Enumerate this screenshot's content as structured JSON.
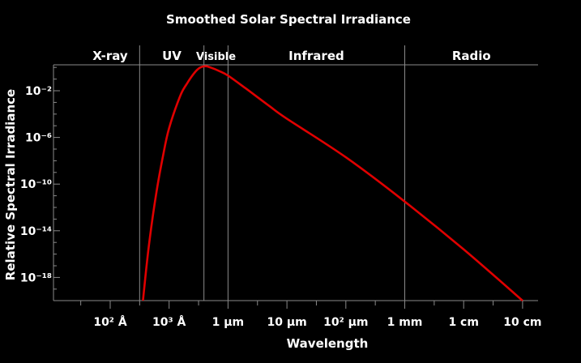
{
  "chart_data": {
    "type": "line",
    "title": "Smoothed Solar Spectral Irradiance",
    "xlabel": "Wavelength",
    "ylabel": "Relative Spectral Irradiance",
    "x_scale": "log",
    "y_scale": "log",
    "x_ticks": [
      {
        "value_m": 1e-08,
        "label": "10² Å"
      },
      {
        "value_m": 1e-07,
        "label": "10³ Å"
      },
      {
        "value_m": 1e-06,
        "label": "1 μm"
      },
      {
        "value_m": 1e-05,
        "label": "10 μm"
      },
      {
        "value_m": 0.0001,
        "label": "10² μm"
      },
      {
        "value_m": 0.001,
        "label": "1 mm"
      },
      {
        "value_m": 0.01,
        "label": "1 cm"
      },
      {
        "value_m": 0.1,
        "label": "10 cm"
      }
    ],
    "y_ticks": [
      {
        "exp": -2,
        "label": "10⁻²"
      },
      {
        "exp": -6,
        "label": "10⁻⁶"
      },
      {
        "exp": -10,
        "label": "10⁻¹⁰"
      },
      {
        "exp": -14,
        "label": "10⁻¹⁴"
      },
      {
        "exp": -18,
        "label": "10⁻¹⁸"
      }
    ],
    "regions": [
      {
        "name": "X-ray",
        "from_m": 3.16e-09,
        "to_m": 3.16e-08
      },
      {
        "name": "UV",
        "from_m": 3.16e-08,
        "to_m": 3.9e-07
      },
      {
        "name": "Visible",
        "from_m": 3.9e-07,
        "to_m": 1e-06
      },
      {
        "name": "Infrared",
        "from_m": 1e-06,
        "to_m": 0.001
      },
      {
        "name": "Radio",
        "from_m": 0.001,
        "to_m": 0.2
      }
    ],
    "series": [
      {
        "color": "#e00000",
        "x_m": [
          3.6e-08,
          4.5e-08,
          6e-08,
          8e-08,
          1e-07,
          1.5e-07,
          2e-07,
          3e-07,
          4e-07,
          5e-07,
          7e-07,
          1e-06,
          2e-06,
          5e-06,
          1e-05,
          0.0001,
          0.001,
          0.01,
          0.1
        ],
        "y_exp": [
          -20.0,
          -15.4,
          -10.9,
          -7.4,
          -5.2,
          -2.6,
          -1.4,
          -0.2,
          0.1,
          0.0,
          -0.3,
          -0.7,
          -1.8,
          -3.3,
          -4.4,
          -7.7,
          -11.5,
          -15.6,
          -20.0
        ]
      }
    ]
  }
}
